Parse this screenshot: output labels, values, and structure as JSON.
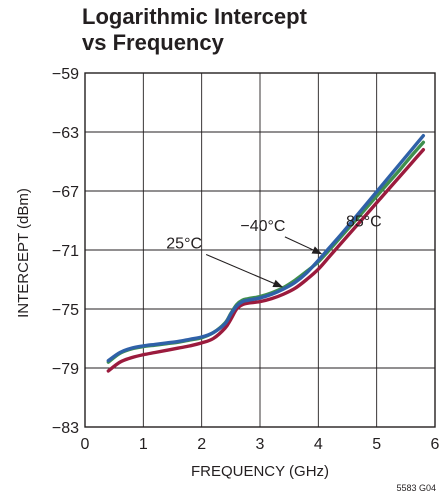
{
  "chart_data": {
    "type": "line",
    "title": "Logarithmic Intercept\nvs Frequency",
    "xlabel": "FREQUENCY (GHz)",
    "ylabel": "INTERCEPT (dBm)",
    "xlim": [
      0,
      6
    ],
    "ylim": [
      -83,
      -59
    ],
    "xticks": [
      "0",
      "1",
      "2",
      "3",
      "4",
      "5",
      "6"
    ],
    "yticks": [
      "−59",
      "−63",
      "−67",
      "−71",
      "−75",
      "−79",
      "−83"
    ],
    "xtick_values": [
      0,
      1,
      2,
      3,
      4,
      5,
      6
    ],
    "ytick_values": [
      -59,
      -63,
      -67,
      -71,
      -75,
      -79,
      -83
    ],
    "grid": true,
    "series": [
      {
        "name": "85°C",
        "color": "#9b1b3d",
        "x": [
          0.4,
          0.6,
          0.8,
          1.0,
          1.2,
          1.4,
          1.6,
          1.8,
          2.0,
          2.2,
          2.4,
          2.5,
          2.6,
          2.7,
          2.8,
          3.0,
          3.2,
          3.4,
          3.6,
          3.8,
          4.0,
          4.2,
          4.4,
          4.6,
          4.8,
          5.0,
          5.2,
          5.4,
          5.6,
          5.8
        ],
        "y": [
          -79.2,
          -78.6,
          -78.3,
          -78.1,
          -77.95,
          -77.8,
          -77.65,
          -77.5,
          -77.3,
          -77.0,
          -76.3,
          -75.7,
          -75.0,
          -74.7,
          -74.6,
          -74.5,
          -74.3,
          -74.0,
          -73.6,
          -73.0,
          -72.3,
          -71.4,
          -70.5,
          -69.6,
          -68.7,
          -67.8,
          -66.9,
          -66.0,
          -65.1,
          -64.2
        ]
      },
      {
        "name": "25°C",
        "color": "#3f8f4e",
        "x": [
          0.4,
          0.6,
          0.8,
          1.0,
          1.2,
          1.4,
          1.6,
          1.8,
          2.0,
          2.2,
          2.4,
          2.5,
          2.6,
          2.7,
          2.8,
          3.0,
          3.2,
          3.4,
          3.6,
          3.8,
          4.0,
          4.2,
          4.4,
          4.6,
          4.8,
          5.0,
          5.2,
          5.4,
          5.6,
          5.8
        ],
        "y": [
          -78.6,
          -78.0,
          -77.7,
          -77.55,
          -77.45,
          -77.35,
          -77.25,
          -77.1,
          -76.95,
          -76.6,
          -75.95,
          -75.3,
          -74.7,
          -74.4,
          -74.3,
          -74.15,
          -73.9,
          -73.55,
          -73.05,
          -72.45,
          -71.8,
          -70.95,
          -70.05,
          -69.15,
          -68.25,
          -67.35,
          -66.45,
          -65.55,
          -64.6,
          -63.7
        ]
      },
      {
        "name": "−40°C",
        "color": "#2f61a8",
        "x": [
          0.4,
          0.6,
          0.8,
          1.0,
          1.2,
          1.4,
          1.6,
          1.8,
          2.0,
          2.2,
          2.4,
          2.5,
          2.6,
          2.7,
          2.8,
          3.0,
          3.2,
          3.4,
          3.6,
          3.8,
          4.0,
          4.2,
          4.4,
          4.6,
          4.8,
          5.0,
          5.2,
          5.4,
          5.6,
          5.8
        ],
        "y": [
          -78.5,
          -77.95,
          -77.65,
          -77.5,
          -77.4,
          -77.3,
          -77.2,
          -77.05,
          -76.9,
          -76.6,
          -76.0,
          -75.35,
          -74.8,
          -74.5,
          -74.4,
          -74.25,
          -74.0,
          -73.65,
          -73.2,
          -72.55,
          -71.7,
          -70.8,
          -69.9,
          -68.95,
          -68.0,
          -67.05,
          -66.1,
          -65.15,
          -64.2,
          -63.25
        ]
      }
    ],
    "annotations": [
      {
        "text": "−40°C",
        "x": 3.05,
        "y": -69.7,
        "arrow_to": [
          4.05,
          -71.25
        ]
      },
      {
        "text": "25°C",
        "x": 1.7,
        "y": -70.9,
        "arrow_to": [
          3.38,
          -73.5
        ]
      },
      {
        "text": "85°C",
        "x": 4.78,
        "y": -69.4
      }
    ],
    "figure_code": "5583 G04"
  }
}
